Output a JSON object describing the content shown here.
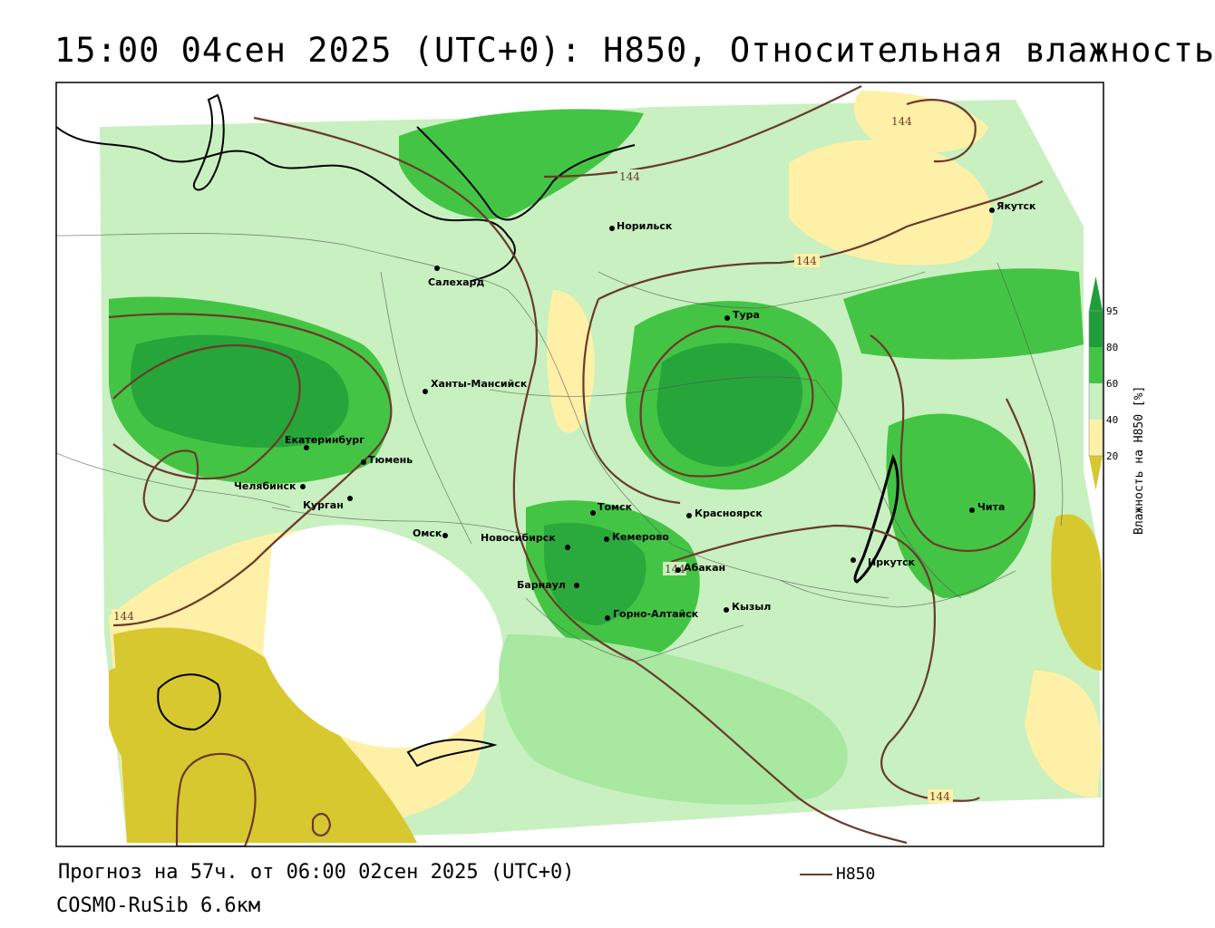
{
  "title": "15:00 04сен 2025 (UTC+0): H850, Относительная влажность",
  "footer": {
    "forecast": "Прогноз на 57ч. от 06:00 02сен 2025 (UTC+0)",
    "model": "COSMO-RuSib 6.6км",
    "legend_label": "H850"
  },
  "colorbar": {
    "title": "Влажность на H850 [%]",
    "ticks": [
      "95",
      "80",
      "60",
      "40",
      "20"
    ],
    "colors": {
      "very_dry": "#d8c830",
      "dry": "#fff0a8",
      "neutral": "#ffffff",
      "moist": "#a8e8a0",
      "wet": "#44c444",
      "very_wet": "#1f9e3a"
    }
  },
  "contour": {
    "color": "#6b3a2a",
    "label": "144"
  },
  "cities": [
    {
      "name": "Норильск"
    },
    {
      "name": "Якутск"
    },
    {
      "name": "Салехард"
    },
    {
      "name": "Тура"
    },
    {
      "name": "Ханты-Мансийск"
    },
    {
      "name": "Екатеринбург"
    },
    {
      "name": "Тюмень"
    },
    {
      "name": "Челябинск"
    },
    {
      "name": "Курган"
    },
    {
      "name": "Омск"
    },
    {
      "name": "Новосибирск"
    },
    {
      "name": "Томск"
    },
    {
      "name": "Кемерово"
    },
    {
      "name": "Красноярск"
    },
    {
      "name": "Барнаул"
    },
    {
      "name": "Абакан"
    },
    {
      "name": "Горно-Алтайск"
    },
    {
      "name": "Кызыл"
    },
    {
      "name": "Иркутск"
    },
    {
      "name": "Чита"
    }
  ]
}
